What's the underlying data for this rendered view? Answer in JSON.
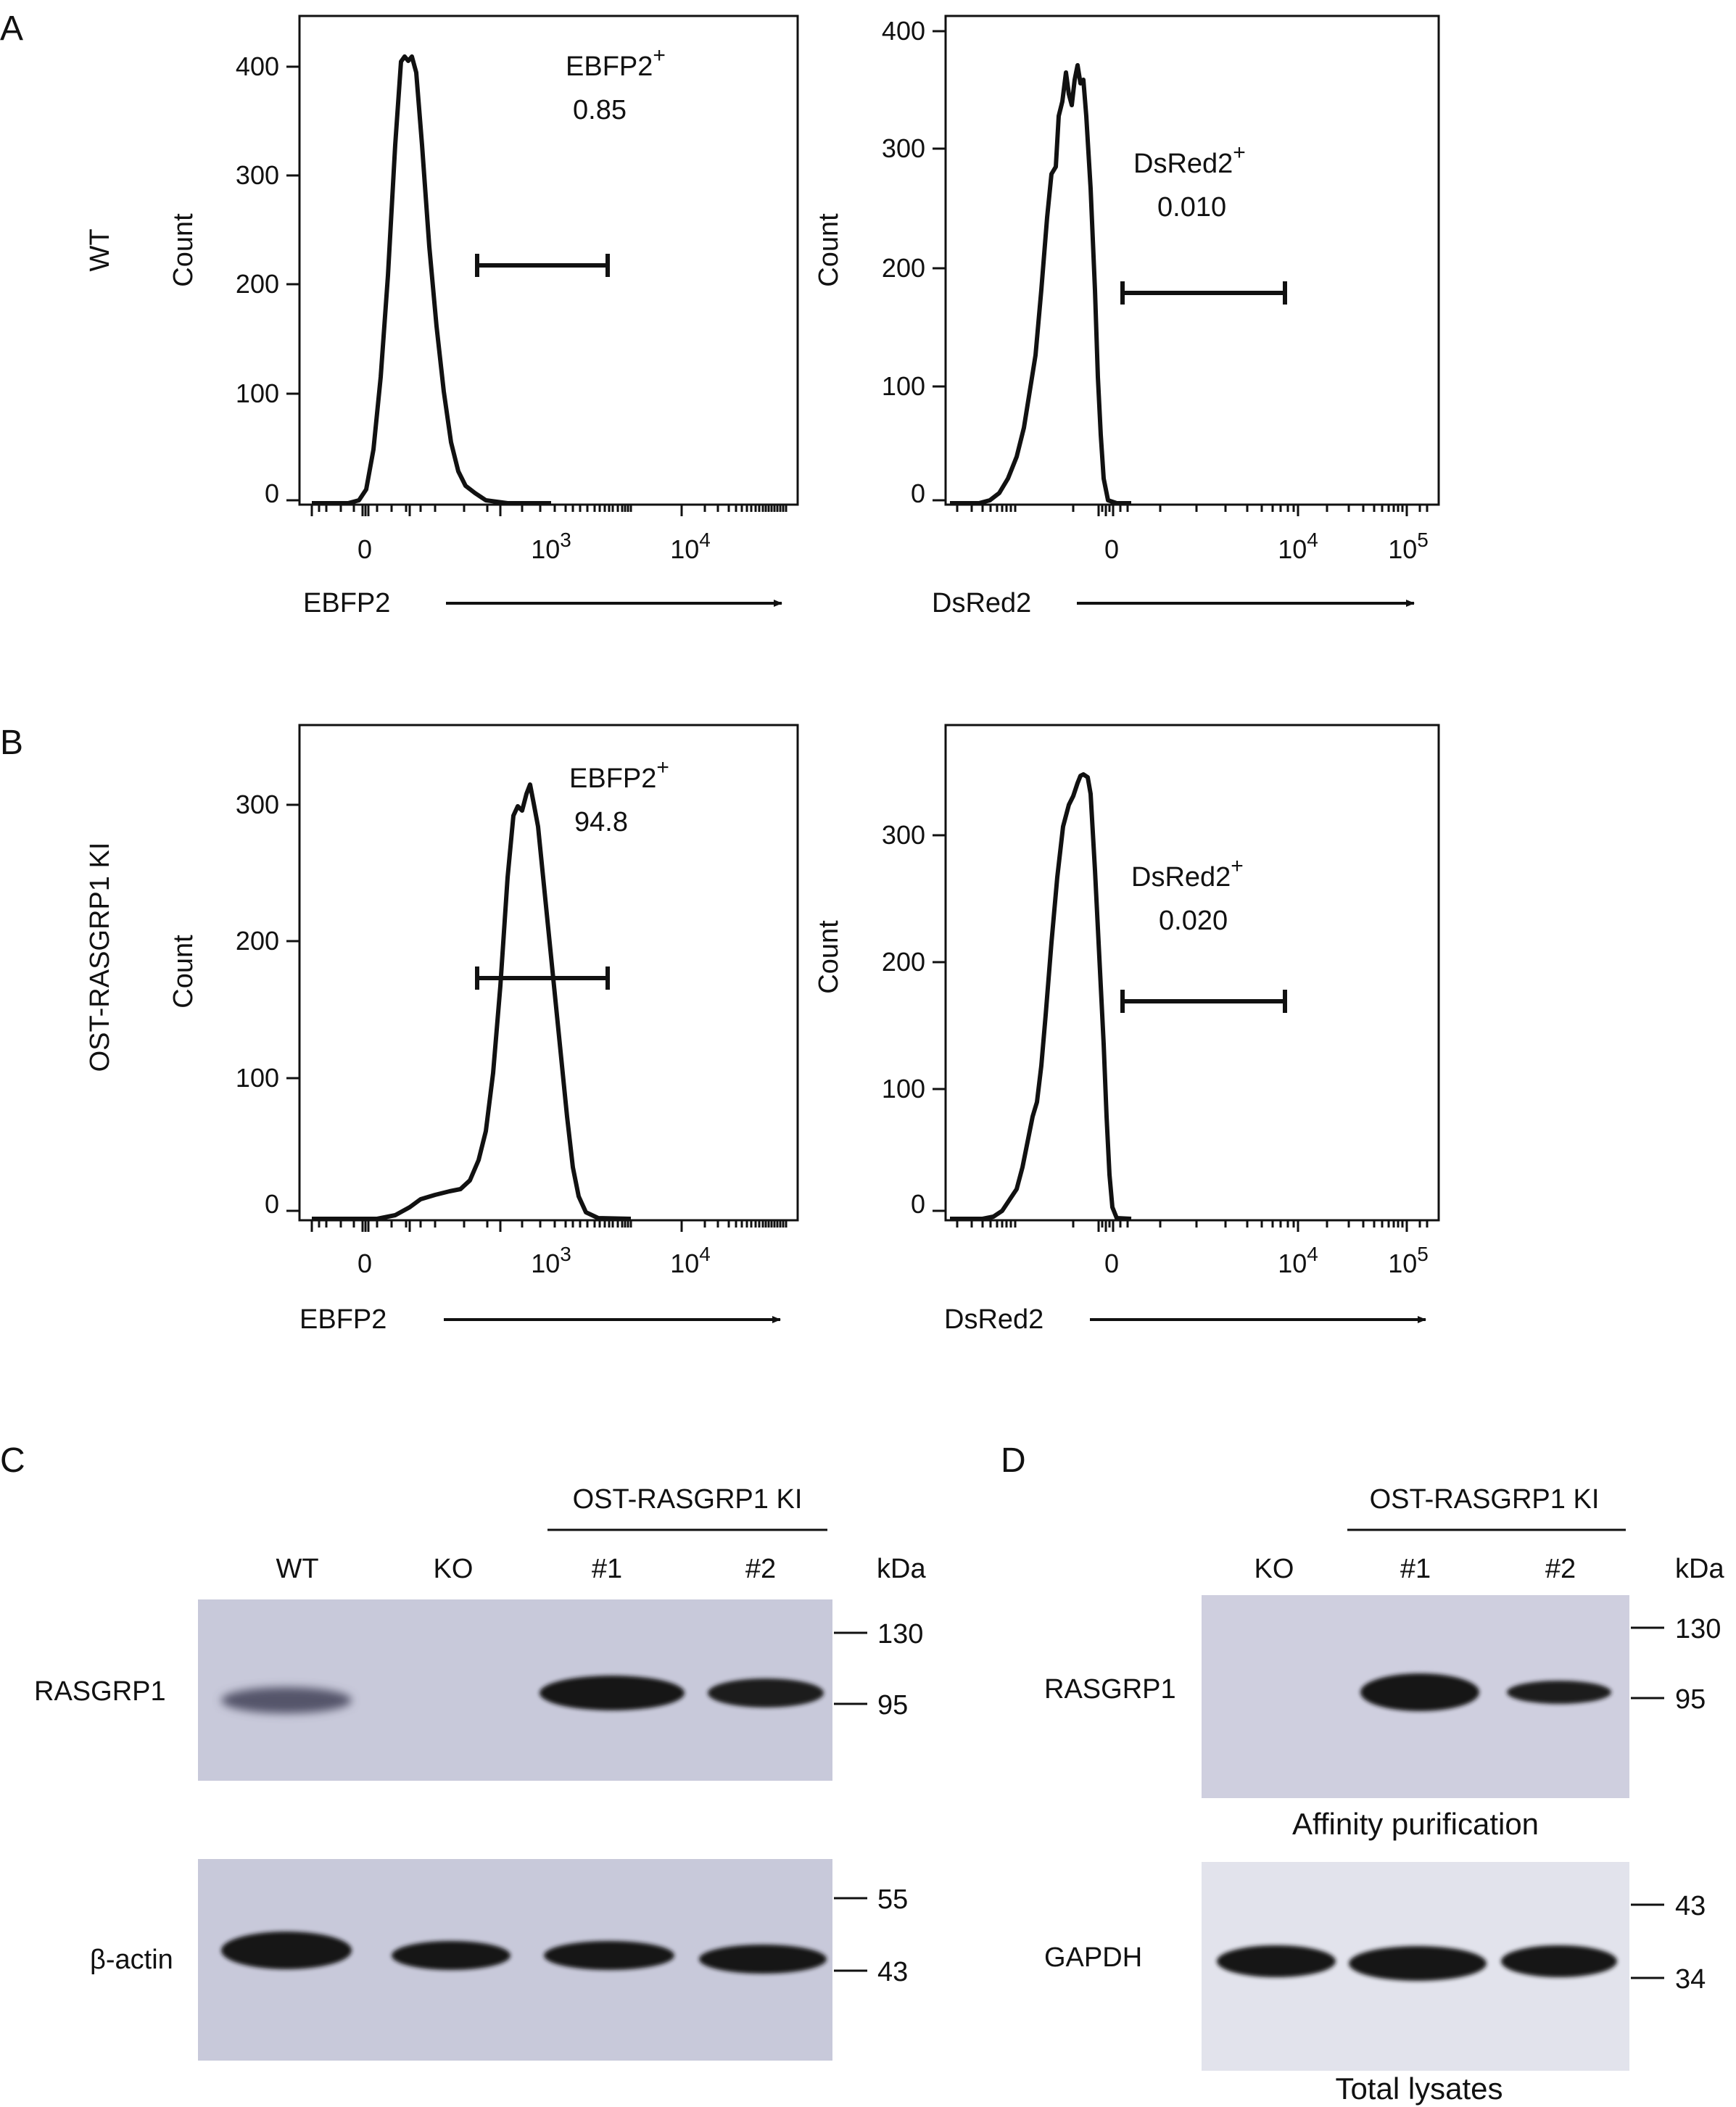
{
  "panels": {
    "A": {
      "label": "A",
      "row_label": "WT"
    },
    "B": {
      "label": "B",
      "row_label": "OST-RASGRP1 KI"
    },
    "C": {
      "label": "C"
    },
    "D": {
      "label": "D"
    }
  },
  "flow": {
    "count_label": "Count",
    "zero_label": "0",
    "ebfp_axis": "EBFP2",
    "dsred_axis": "DsRed2",
    "ebfp_ticks": [
      {
        "base": "10",
        "exp": "3"
      },
      {
        "base": "10",
        "exp": "4"
      }
    ],
    "dsred_ticks": [
      {
        "base": "10",
        "exp": "4"
      },
      {
        "base": "10",
        "exp": "5"
      }
    ],
    "plots": [
      {
        "id": "A-EBFP2",
        "gate_name": "EBFP2",
        "gate_sup": "+",
        "gate_value": "0.85",
        "y_ticks": [
          "0",
          "100",
          "200",
          "300",
          "400"
        ],
        "peak_count": 405
      },
      {
        "id": "A-DsRed2",
        "gate_name": "DsRed2",
        "gate_sup": "+",
        "gate_value": "0.010",
        "y_ticks": [
          "0",
          "100",
          "200",
          "300",
          "400"
        ],
        "peak_count": 365
      },
      {
        "id": "B-EBFP2",
        "gate_name": "EBFP2",
        "gate_sup": "+",
        "gate_value": "94.8",
        "y_ticks": [
          "0",
          "100",
          "200",
          "300"
        ],
        "peak_count": 315
      },
      {
        "id": "B-DsRed2",
        "gate_name": "DsRed2",
        "gate_sup": "+",
        "gate_value": "0.020",
        "y_ticks": [
          "0",
          "100",
          "200",
          "300"
        ],
        "peak_count": 345
      }
    ]
  },
  "blot_c": {
    "group_label": "OST-RASGRP1 KI",
    "kda_label": "kDa",
    "lanes": [
      "WT",
      "KO",
      "#1",
      "#2"
    ],
    "rows": [
      {
        "protein": "RASGRP1",
        "markers": [
          "130",
          "95"
        ]
      },
      {
        "protein": "β-actin",
        "markers": [
          "55",
          "43"
        ]
      }
    ]
  },
  "blot_d": {
    "group_label": "OST-RASGRP1 KI",
    "kda_label": "kDa",
    "lanes": [
      "KO",
      "#1",
      "#2"
    ],
    "rows": [
      {
        "protein": "RASGRP1",
        "markers": [
          "130",
          "95"
        ],
        "caption": "Affinity purification"
      },
      {
        "protein": "GAPDH",
        "markers": [
          "43",
          "34"
        ],
        "caption": "Total lysates"
      }
    ]
  },
  "colors": {
    "ink": "#111111",
    "membrane": "#c9c9d9",
    "membrane_light": "#e2e3ec",
    "band": "#141414"
  }
}
